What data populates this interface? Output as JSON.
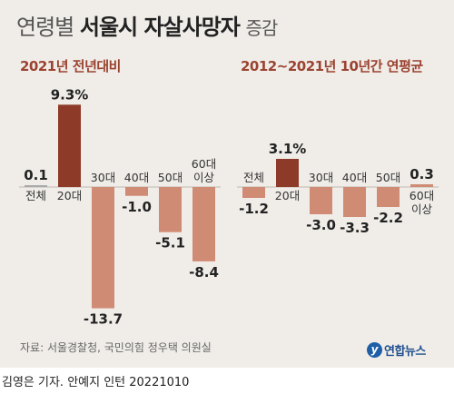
{
  "title": {
    "part1": "연령별",
    "part2": "서울시 자살사망자",
    "part3": "증감"
  },
  "chart_data": [
    {
      "type": "bar",
      "title": "2021년 전년대비",
      "categories": [
        "전체",
        "20대",
        "30대",
        "40대",
        "50대",
        "60대 이상"
      ],
      "values": [
        0.1,
        9.3,
        -13.7,
        -1.0,
        -5.1,
        -8.4
      ],
      "value_labels": [
        "0.1",
        "9.3%",
        "-13.7",
        "-1.0",
        "-5.1",
        "-8.4"
      ],
      "highlight": "20대"
    },
    {
      "type": "bar",
      "title": "2012~2021년 10년간 연평균",
      "categories": [
        "전체",
        "20대",
        "30대",
        "40대",
        "50대",
        "60대 이상"
      ],
      "values": [
        -1.2,
        3.1,
        -3.0,
        -3.3,
        -2.2,
        0.3
      ],
      "value_labels": [
        "-1.2",
        "3.1%",
        "-3.0",
        "-3.3",
        "-2.2",
        "0.3"
      ],
      "highlight": "20대"
    }
  ],
  "colors": {
    "highlight": "#8e3a28",
    "normal": "#d08b74",
    "zero": "#aaaaaa",
    "background": "#f0ede9"
  },
  "source": "자료: 서울경찰청, 국민의힘 정우택 의원실",
  "logo": {
    "icon": "y",
    "text": "연합뉴스"
  },
  "credit": "김영은 기자. 안예지 인턴  20221010"
}
